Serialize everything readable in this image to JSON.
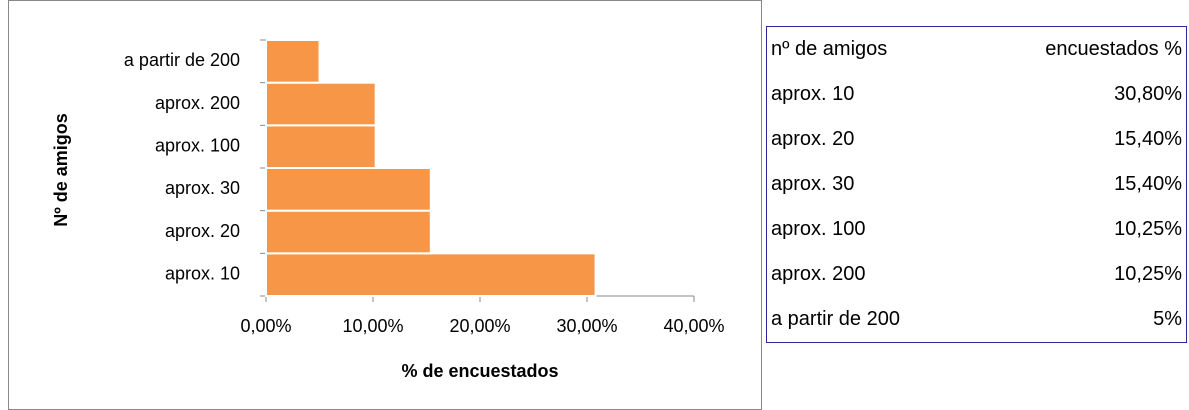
{
  "chart_data": {
    "type": "barh",
    "categories": [
      "aprox. 10",
      "aprox. 20",
      "aprox. 30",
      "aprox. 100",
      "aprox. 200",
      "a partir de 200"
    ],
    "values": [
      30.8,
      15.4,
      15.4,
      10.25,
      10.25,
      5
    ],
    "color": "#f79646",
    "xlim": [
      0,
      40
    ],
    "xticks": [
      {
        "value": 0,
        "label": "0,00%"
      },
      {
        "value": 10,
        "label": "10,00%"
      },
      {
        "value": 20,
        "label": "20,00%"
      },
      {
        "value": 30,
        "label": "30,00%"
      },
      {
        "value": 40,
        "label": "40,00%"
      }
    ],
    "x_label": "% de encuestados",
    "y_label": "Nº de amigos",
    "grid": false
  },
  "table": {
    "header": [
      "nº de amigos",
      "encuestados %"
    ],
    "rows": [
      [
        "aprox. 10",
        "30,80%"
      ],
      [
        "aprox. 20",
        "15,40%"
      ],
      [
        "aprox. 30",
        "15,40%"
      ],
      [
        "aprox. 100",
        "10,25%"
      ],
      [
        "aprox. 200",
        "10,25%"
      ],
      [
        "a partir de 200",
        "5%"
      ]
    ]
  }
}
